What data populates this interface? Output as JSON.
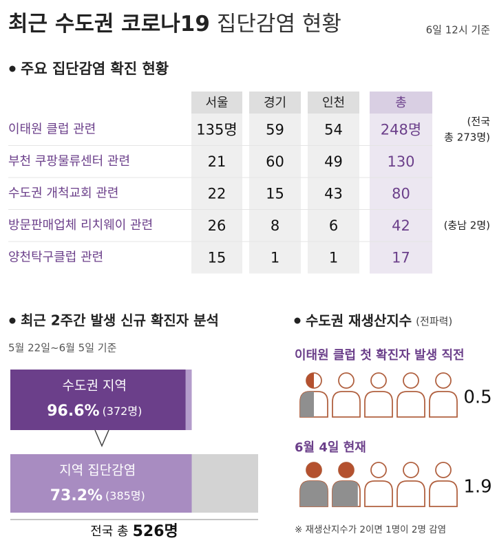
{
  "header": {
    "title_main": "최근 수도권 코로나19",
    "title_sub": "집단감염 현황",
    "date": "6일 12시 기준"
  },
  "table": {
    "heading": "주요 집단감염 확진 현황",
    "columns": [
      "서울",
      "경기",
      "인천",
      "총"
    ],
    "rows": [
      {
        "label": "이태원 클럽 관련",
        "cells": [
          "135명",
          "59",
          "54",
          "248명"
        ],
        "notes": [
          "(전국",
          "총 273명)"
        ]
      },
      {
        "label": "부천 쿠팡물류센터 관련",
        "cells": [
          "21",
          "60",
          "49",
          "130"
        ]
      },
      {
        "label": "수도권 개척교회 관련",
        "cells": [
          "22",
          "15",
          "43",
          "80"
        ]
      },
      {
        "label": "방문판매업체 리치웨이 관련",
        "cells": [
          "26",
          "8",
          "6",
          "42"
        ],
        "notes": [
          "(충남 2명)"
        ]
      },
      {
        "label": "양천탁구클럽 관련",
        "cells": [
          "15",
          "1",
          "1",
          "17"
        ]
      }
    ]
  },
  "analysis": {
    "heading": "최근 2주간 발생 신규 확진자 분석",
    "subtitle": "5월 22일~6월 5일 기준",
    "bars": [
      {
        "label": "수도권 지역",
        "value": 96.6,
        "value_label": "96.6%",
        "count": "(372명)"
      },
      {
        "label": "지역 집단감염",
        "value": 73.2,
        "value_label": "73.2%",
        "count": "(385명)"
      }
    ],
    "total_label": "전국 총",
    "total_value": "526명"
  },
  "reproduction": {
    "heading": "수도권 재생산지수",
    "heading_note": "(전파력)",
    "rows": [
      {
        "label": "이태원 클럽 첫 확진자 발생 직전",
        "value": 0.5
      },
      {
        "label": "6월 4일 현재",
        "value": 1.9
      }
    ],
    "note": "※ 재생산지수가 2이면 1명이 2명 감염"
  }
}
